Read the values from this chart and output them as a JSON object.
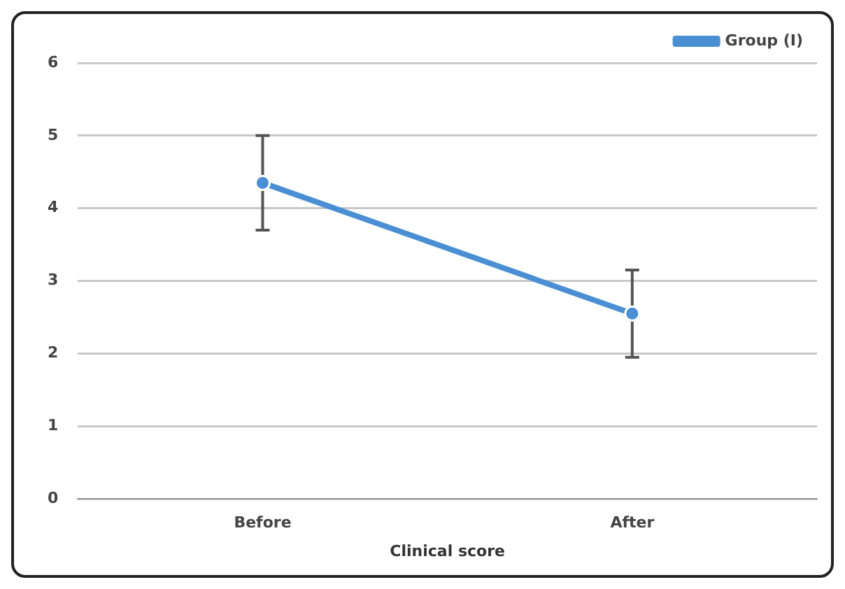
{
  "chart_data": {
    "type": "line",
    "xlabel": "Clinical score",
    "categories": [
      "Before",
      "After"
    ],
    "series": [
      {
        "name": "Group (I)",
        "color": "#4a8fd4",
        "values": [
          4.35,
          2.55
        ],
        "errors": [
          [
            3.7,
            5.0
          ],
          [
            1.95,
            3.15
          ]
        ]
      }
    ],
    "ylim": [
      0,
      6
    ],
    "yticks": [
      0,
      1,
      2,
      3,
      4,
      5,
      6
    ],
    "grid": "y",
    "legend": "top right",
    "marker": "circle"
  }
}
